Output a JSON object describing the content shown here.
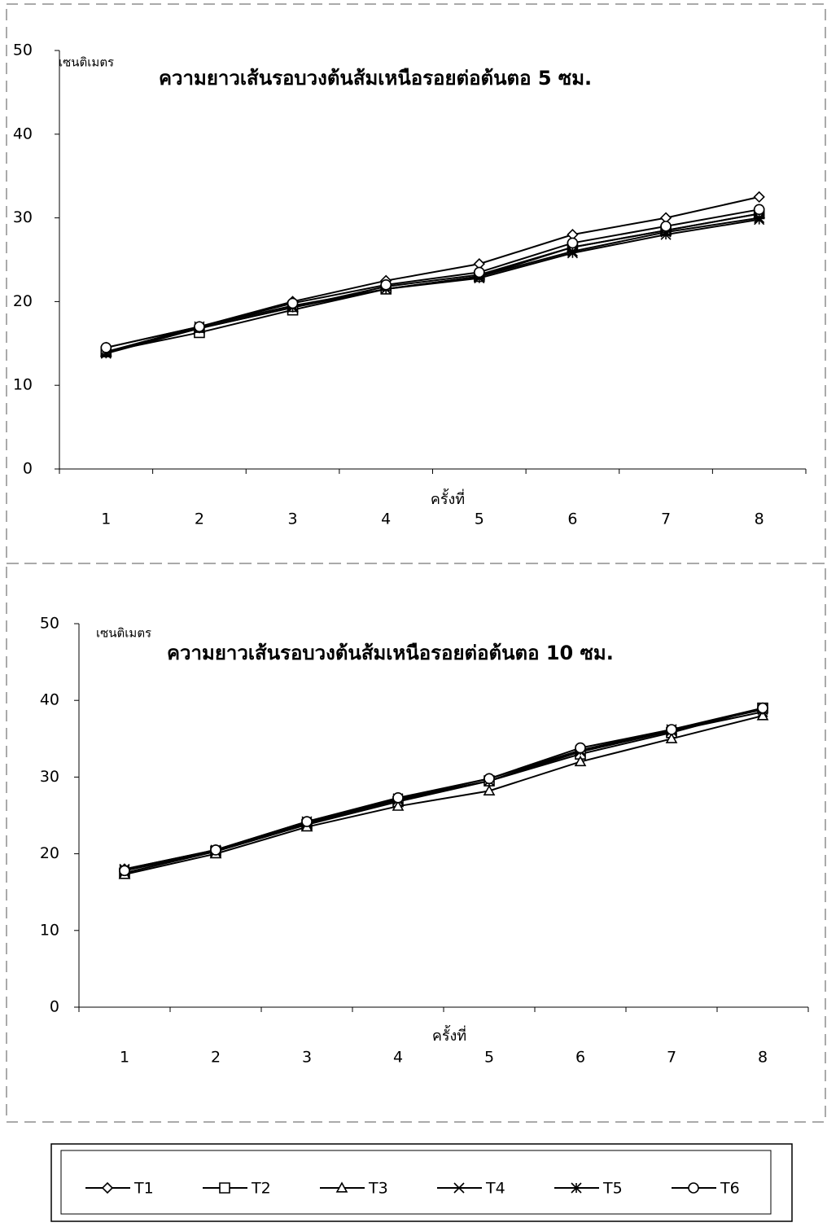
{
  "chart_data": [
    {
      "type": "line",
      "title": "ความยาวเส้นรอบวงต้นส้มเหนือรอยต่อต้นตอ 5 ซม.",
      "y_label": "เซนติเมตร",
      "x_label": "ครั้งที่",
      "categories": [
        "1",
        "2",
        "3",
        "4",
        "5",
        "6",
        "7",
        "8"
      ],
      "ylim": [
        0,
        50
      ],
      "yticks": [
        0,
        10,
        20,
        30,
        40,
        50
      ],
      "color": "#000000",
      "series": [
        {
          "name": "T1",
          "marker": "diamond",
          "values": [
            14.5,
            17,
            20,
            22.5,
            24.5,
            28,
            30,
            32.5
          ]
        },
        {
          "name": "T2",
          "marker": "square",
          "values": [
            14,
            16.3,
            19,
            21.5,
            23,
            26.5,
            28.5,
            30.5
          ]
        },
        {
          "name": "T3",
          "marker": "triangle",
          "values": [
            14,
            16.8,
            19.3,
            21.8,
            23.2,
            26.5,
            28.5,
            30.5
          ]
        },
        {
          "name": "T4",
          "marker": "x",
          "values": [
            14,
            17,
            19.5,
            21.5,
            23,
            26,
            28.3,
            30
          ]
        },
        {
          "name": "T5",
          "marker": "star",
          "values": [
            13.8,
            16.8,
            19.3,
            21.5,
            22.8,
            25.8,
            28,
            29.8
          ]
        },
        {
          "name": "T6",
          "marker": "circle",
          "values": [
            14.5,
            17,
            19.8,
            22,
            23.5,
            27,
            29,
            31
          ]
        }
      ]
    },
    {
      "type": "line",
      "title": "ความยาวเส้นรอบวงต้นส้มเหนือรอยต่อต้นตอ 10 ซม.",
      "y_label": "เซนติเมตร",
      "x_label": "ครั้งที่",
      "categories": [
        "1",
        "2",
        "3",
        "4",
        "5",
        "6",
        "7",
        "8"
      ],
      "ylim": [
        0,
        50
      ],
      "yticks": [
        0,
        10,
        20,
        30,
        40,
        50
      ],
      "color": "#000000",
      "series": [
        {
          "marker": "diamond",
          "values": [
            18,
            20.5,
            24,
            27.2,
            29.8,
            33.5,
            36,
            39
          ]
        },
        {
          "marker": "square",
          "values": [
            17.5,
            20.3,
            23.8,
            26.8,
            29.5,
            33,
            35.8,
            39
          ]
        },
        {
          "marker": "triangle",
          "values": [
            17.3,
            20,
            23.5,
            26.2,
            28.2,
            32,
            35,
            38
          ]
        },
        {
          "marker": "x",
          "values": [
            17.8,
            20.3,
            24,
            27,
            29.5,
            33.3,
            36,
            38.5
          ]
        },
        {
          "marker": "star",
          "values": [
            18,
            20.5,
            24.2,
            27.2,
            29.5,
            33.5,
            36.2,
            38.8
          ]
        },
        {
          "marker": "circle",
          "values": [
            17.8,
            20.5,
            24.2,
            27.3,
            29.8,
            33.8,
            36.2,
            39
          ]
        }
      ]
    }
  ]
}
